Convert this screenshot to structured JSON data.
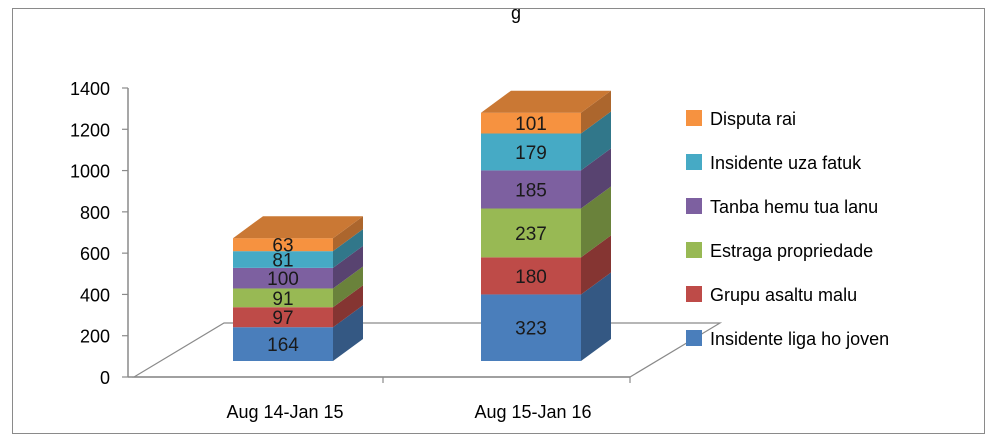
{
  "chart_data": {
    "type": "bar",
    "stacked": true,
    "three_d": true,
    "title_fragment": "g",
    "categories": [
      "Aug 14-Jan 15",
      "Aug 15-Jan 16"
    ],
    "series": [
      {
        "name": "Insidente liga ho joven",
        "color": "#4a7ebb",
        "values": [
          164,
          323
        ]
      },
      {
        "name": "Grupu asaltu malu",
        "color": "#be4b48",
        "values": [
          97,
          180
        ]
      },
      {
        "name": "Estraga propriedade",
        "color": "#98b954",
        "values": [
          91,
          237
        ]
      },
      {
        "name": "Tanba hemu tua lanu",
        "color": "#7d60a0",
        "values": [
          100,
          185
        ]
      },
      {
        "name": "Insidente uza fatuk",
        "color": "#46aac5",
        "values": [
          81,
          179
        ]
      },
      {
        "name": "Disputa rai",
        "color": "#f69240",
        "values": [
          63,
          101
        ]
      }
    ],
    "ylim": [
      0,
      1400
    ],
    "yticks": [
      0,
      200,
      400,
      600,
      800,
      1000,
      1200,
      1400
    ],
    "grid": false,
    "legend_position": "right"
  }
}
